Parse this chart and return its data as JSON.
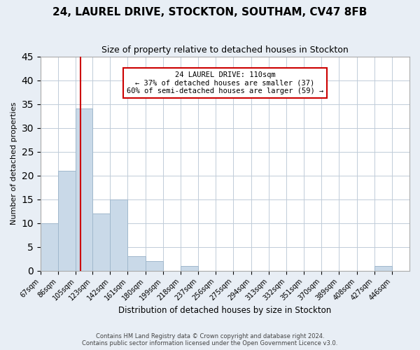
{
  "title": "24, LAUREL DRIVE, STOCKTON, SOUTHAM, CV47 8FB",
  "subtitle": "Size of property relative to detached houses in Stockton",
  "xlabel": "Distribution of detached houses by size in Stockton",
  "ylabel": "Number of detached properties",
  "bin_labels": [
    "67sqm",
    "86sqm",
    "105sqm",
    "123sqm",
    "142sqm",
    "161sqm",
    "180sqm",
    "199sqm",
    "218sqm",
    "237sqm",
    "256sqm",
    "275sqm",
    "294sqm",
    "313sqm",
    "332sqm",
    "351sqm",
    "370sqm",
    "389sqm",
    "408sqm",
    "427sqm",
    "446sqm"
  ],
  "bar_values": [
    10,
    21,
    34,
    12,
    15,
    3,
    2,
    0,
    1,
    0,
    0,
    0,
    0,
    0,
    0,
    0,
    0,
    0,
    0,
    1,
    0
  ],
  "bar_color": "#c9d9e8",
  "bar_edgecolor": "#a0b8cc",
  "property_line_x": 110,
  "bin_edges": [
    67,
    86,
    105,
    123,
    142,
    161,
    180,
    199,
    218,
    237,
    256,
    275,
    294,
    313,
    332,
    351,
    370,
    389,
    408,
    427,
    446,
    465
  ],
  "vline_color": "#cc0000",
  "annotation_box_edgecolor": "#cc0000",
  "annotation_title": "24 LAUREL DRIVE: 110sqm",
  "annotation_line1": "← 37% of detached houses are smaller (37)",
  "annotation_line2": "60% of semi-detached houses are larger (59) →",
  "ylim": [
    0,
    45
  ],
  "yticks": [
    0,
    5,
    10,
    15,
    20,
    25,
    30,
    35,
    40,
    45
  ],
  "footer1": "Contains HM Land Registry data © Crown copyright and database right 2024.",
  "footer2": "Contains public sector information licensed under the Open Government Licence v3.0.",
  "bg_color": "#e8eef5",
  "plot_bg_color": "#ffffff",
  "grid_color": "#c0ccd8"
}
